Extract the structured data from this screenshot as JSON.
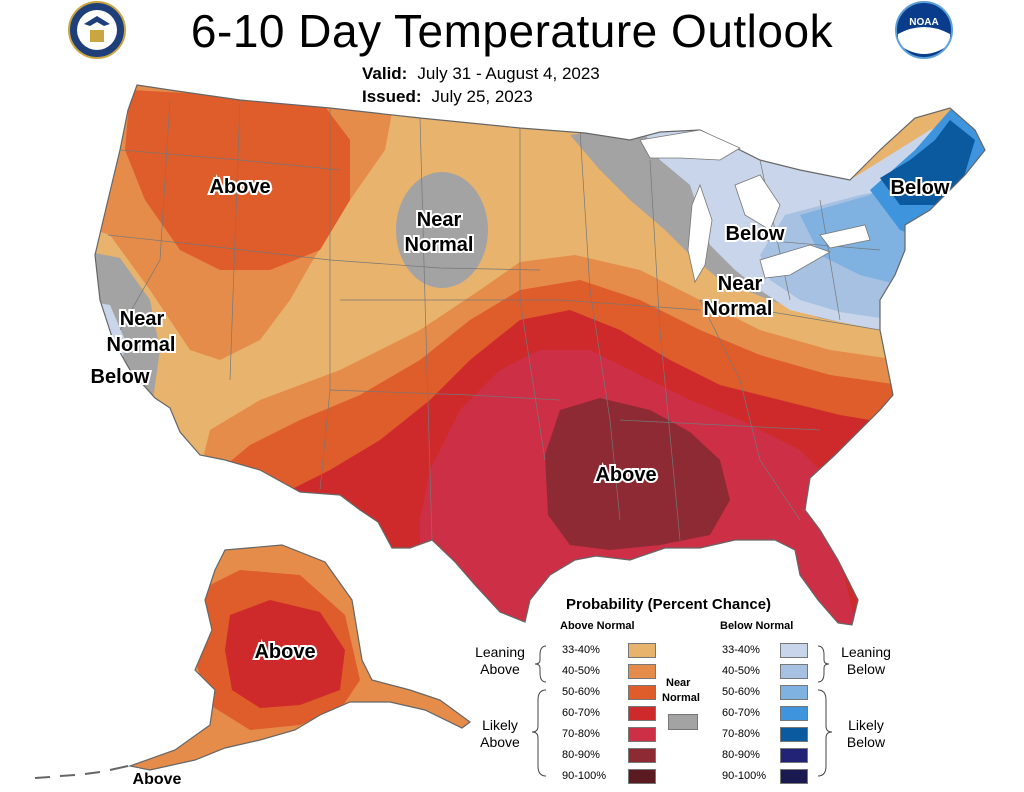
{
  "title": "6-10 Day Temperature Outlook",
  "valid_label": "Valid:",
  "valid_value": "July 31 - August 4, 2023",
  "issued_label": "Issued:",
  "issued_value": "July 25, 2023",
  "logos": {
    "left": "department-of-commerce-seal-icon",
    "right": "noaa-logo-icon",
    "right_text": "NOAA"
  },
  "map_labels": {
    "above_northwest": "Above",
    "near_normal_plains": [
      "Near",
      "Normal"
    ],
    "near_normal_west": [
      "Near",
      "Normal"
    ],
    "below_west": "Below",
    "above_south": "Above",
    "below_lakes": "Below",
    "near_normal_lakes": [
      "Near",
      "Normal"
    ],
    "below_northeast": "Below",
    "above_alaska": "Above",
    "above_aleutians": "Above"
  },
  "legend": {
    "title": "Probability (Percent Chance)",
    "above_head": "Above Normal",
    "below_head": "Below Normal",
    "near_head": [
      "Near",
      "Normal"
    ],
    "above_rows": [
      {
        "label": "33-40%",
        "color": "#e8b36c"
      },
      {
        "label": "40-50%",
        "color": "#e58c4a"
      },
      {
        "label": "50-60%",
        "color": "#df5c2b"
      },
      {
        "label": "60-70%",
        "color": "#cf2a2b"
      },
      {
        "label": "70-80%",
        "color": "#cd2f47"
      },
      {
        "label": "80-90%",
        "color": "#8e2a33"
      },
      {
        "label": "90-100%",
        "color": "#5a1a1f"
      }
    ],
    "below_rows": [
      {
        "label": "33-40%",
        "color": "#c9d5ea"
      },
      {
        "label": "40-50%",
        "color": "#a7c1e2"
      },
      {
        "label": "50-60%",
        "color": "#7fb1e1"
      },
      {
        "label": "60-70%",
        "color": "#3f95dd"
      },
      {
        "label": "70-80%",
        "color": "#0b5aa0"
      },
      {
        "label": "80-90%",
        "color": "#222277"
      },
      {
        "label": "90-100%",
        "color": "#1a1a50"
      }
    ],
    "near_color": "#a3a3a3",
    "leaning_above": [
      "Leaning",
      "Above"
    ],
    "likely_above": [
      "Likely",
      "Above"
    ],
    "leaning_below": [
      "Leaning",
      "Below"
    ],
    "likely_below": [
      "Likely",
      "Below"
    ]
  },
  "colors": {
    "a33": "#e8b36c",
    "a40": "#e58c4a",
    "a50": "#df5c2b",
    "a60": "#cf2a2b",
    "a70": "#cd2f47",
    "a80": "#8e2a33",
    "near": "#a3a3a3",
    "b33": "#c9d5ea",
    "b40": "#a7c1e2",
    "b50": "#7fb1e1",
    "b60": "#3f95dd",
    "b70": "#0b5aa0"
  }
}
